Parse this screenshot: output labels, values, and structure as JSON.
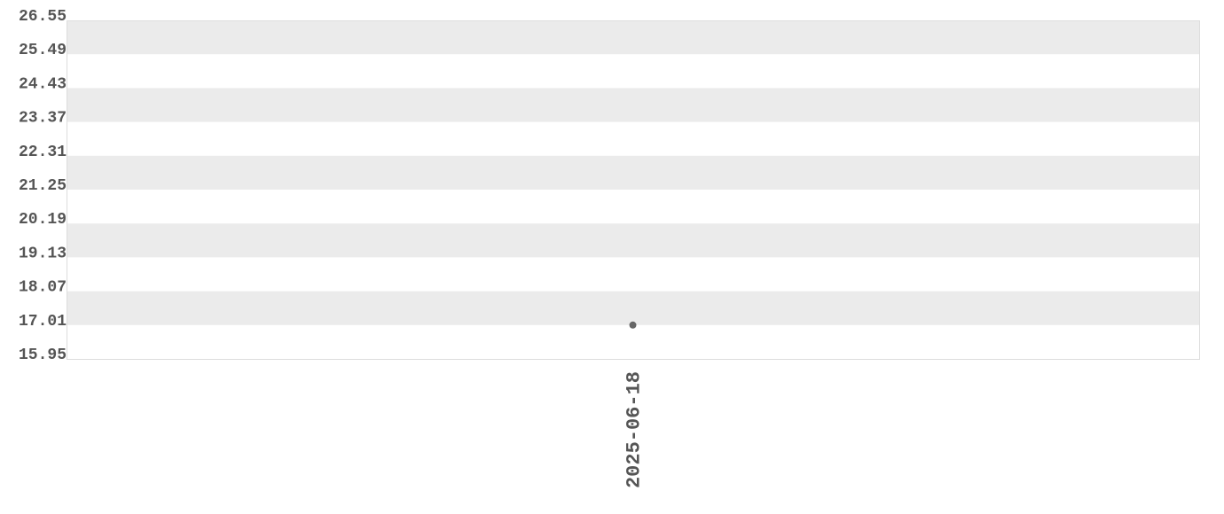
{
  "chart_data": {
    "type": "scatter",
    "title": "",
    "xlabel": "",
    "ylabel": "",
    "x_tick_labels": [
      "2025-06-18"
    ],
    "y_tick_labels": [
      "26.55",
      "25.49",
      "24.43",
      "23.37",
      "22.31",
      "21.25",
      "20.19",
      "19.13",
      "18.07",
      "17.01",
      "15.95"
    ],
    "ylim": [
      15.95,
      26.55
    ],
    "grid": "alternating horizontal bands",
    "legend": "none",
    "points": [
      {
        "x": "2025-06-18",
        "y": 17.01
      }
    ],
    "colors": {
      "point": "#666666",
      "band": "#ebebeb",
      "tick_text": "#555555",
      "border": "#dddddd"
    }
  }
}
